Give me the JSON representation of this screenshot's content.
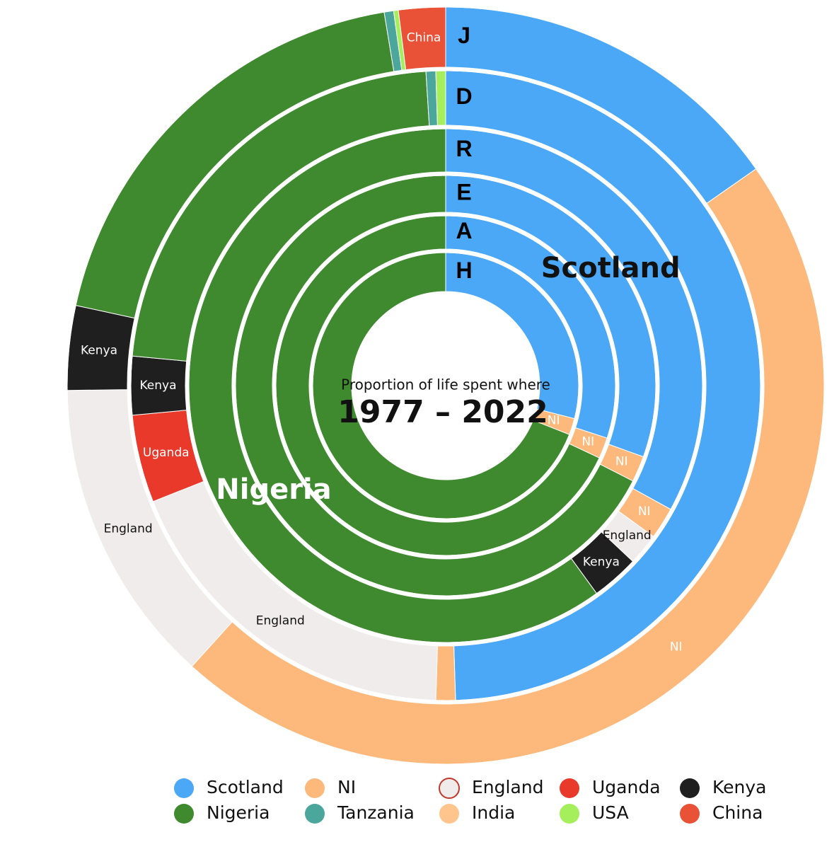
{
  "chart_data": {
    "type": "multi-donut",
    "title": "Proportion of life spent where",
    "subtitle": "1977 – 2022",
    "rings": [
      "J",
      "D",
      "R",
      "E",
      "A",
      "H"
    ],
    "series": [
      {
        "name": "Scotland",
        "color": "#4aa8f7",
        "values": [
          15.3,
          49.5,
          33,
          30.5,
          30,
          29
        ]
      },
      {
        "name": "NI",
        "color": "#fdb97b",
        "values": [
          46.4,
          1,
          2,
          2,
          2,
          2
        ]
      },
      {
        "name": "England",
        "color": "#f1ecec",
        "values": [
          13.1,
          18.5,
          2,
          null,
          null,
          null
        ]
      },
      {
        "name": "Uganda",
        "color": "#e8392a",
        "values": [
          null,
          4.5,
          null,
          null,
          null,
          null
        ]
      },
      {
        "name": "Kenya",
        "color": "#1f1f1f",
        "values": [
          3.6,
          3,
          3,
          null,
          null,
          null
        ]
      },
      {
        "name": "Nigeria",
        "color": "#3f8a2f",
        "values": [
          19,
          22.5,
          60,
          67.5,
          68,
          69
        ]
      },
      {
        "name": "Tanzania",
        "color": "#4ba69c",
        "values": [
          0.4,
          0.5,
          null,
          null,
          null,
          null
        ]
      },
      {
        "name": "India",
        "color": "#ffc58c",
        "values": [
          null,
          null,
          null,
          null,
          null,
          null
        ]
      },
      {
        "name": "USA",
        "color": "#a5ef5c",
        "values": [
          0.2,
          0.5,
          null,
          null,
          null,
          null
        ]
      },
      {
        "name": "China",
        "color": "#ea5237",
        "values": [
          2,
          null,
          null,
          null,
          null,
          null
        ]
      }
    ]
  }
}
